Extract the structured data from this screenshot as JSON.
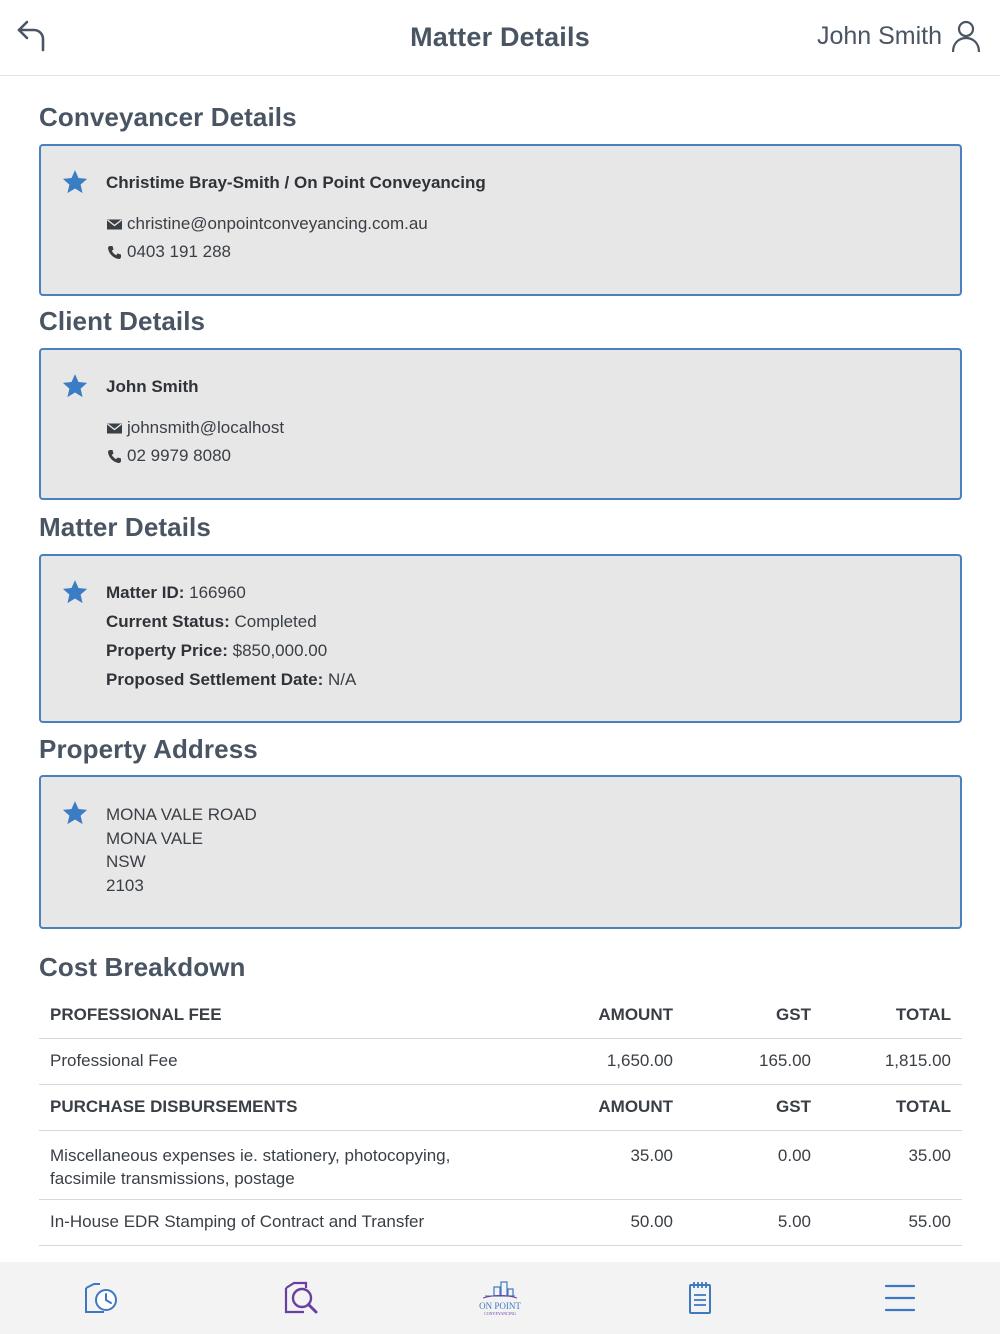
{
  "header": {
    "title": "Matter Details",
    "user_name": "John Smith"
  },
  "conveyancer": {
    "section_title": "Conveyancer Details",
    "name": "Christime Bray-Smith / On Point Conveyancing",
    "email": "christine@onpointconveyancing.com.au",
    "phone": "0403 191 288"
  },
  "client": {
    "section_title": "Client Details",
    "name": "John Smith",
    "email": "johnsmith@localhost",
    "phone": "02 9979 8080"
  },
  "matter": {
    "section_title": "Matter Details",
    "matter_id_label": "Matter ID:",
    "matter_id": "166960",
    "status_label": "Current Status:",
    "status": "Completed",
    "price_label": "Property Price:",
    "price": "$850,000.00",
    "settlement_label": "Proposed Settlement Date:",
    "settlement": "N/A"
  },
  "property": {
    "section_title": "Property Address",
    "lines": [
      "MONA VALE ROAD",
      "MONA VALE",
      "NSW",
      "2103"
    ]
  },
  "costs": {
    "section_title": "Cost Breakdown",
    "columns": [
      "AMOUNT",
      "GST",
      "TOTAL"
    ],
    "groups": [
      {
        "heading": "PROFESSIONAL FEE",
        "rows": [
          {
            "description": "Professional Fee",
            "amount": "1,650.00",
            "gst": "165.00",
            "total": "1,815.00"
          }
        ]
      },
      {
        "heading": "PURCHASE DISBURSEMENTS",
        "rows": [
          {
            "description_1": "Miscellaneous expenses ie. stationery, photocopying,",
            "description_2": "facsimile transmissions, postage",
            "amount": "35.00",
            "gst": "0.00",
            "total": "35.00"
          },
          {
            "description": "In-House EDR Stamping of Contract and Transfer",
            "amount": "50.00",
            "gst": "5.00",
            "total": "55.00"
          }
        ]
      }
    ]
  },
  "bottom_nav": {
    "logo_text_1": "ON POINT",
    "logo_text_2": "CONVEYANCING"
  },
  "colors": {
    "accent_blue": "#4a7fc0",
    "star_blue": "#3b7dc4",
    "card_bg": "#e7e7e7",
    "nav_icon_blue": "#3e78c0",
    "nav_icon_purple": "#6b3fa0"
  },
  "icons": [
    "back-arrow-icon",
    "user-icon",
    "star-icon",
    "envelope-icon",
    "phone-icon",
    "history-doc-icon",
    "search-doc-icon",
    "logo-icon",
    "notepad-icon",
    "menu-icon"
  ]
}
